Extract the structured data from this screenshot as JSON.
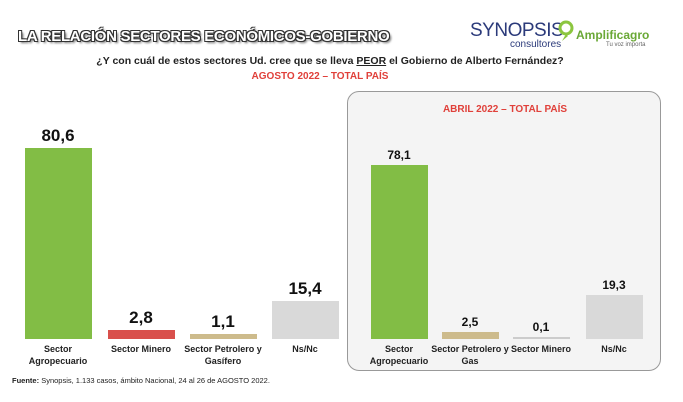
{
  "header": {
    "title": "LA RELACIÓN SECTORES ECONÓMICOS-GOBIERNO",
    "brand1": "SYNOPSIS",
    "brand1_sub": "consultores",
    "brand2": "Amplificagro",
    "brand2_sub": "Tu voz importa",
    "question": [
      "¿Y con cuál de estos sectores Ud. cree que se lleva ",
      "PEOR",
      " el Gobierno de Alberto Fernández?"
    ]
  },
  "chart_data": [
    {
      "type": "bar",
      "subtitle": "AGOSTO 2022 – TOTAL PAÍS",
      "categories": [
        "Sector Agropecuario",
        "Sector Minero",
        "Sector Petrolero y Gasífero",
        "Ns/Nc"
      ],
      "values": [
        80.6,
        2.8,
        1.1,
        15.4
      ],
      "value_labels": [
        "80,6",
        "2,8",
        "1,1",
        "15,4"
      ],
      "colors": [
        "#82bd45",
        "#d9504c",
        "#cdbb8c",
        "#d9d9d9"
      ]
    },
    {
      "type": "bar",
      "subtitle": "ABRIL 2022 – TOTAL PAÍS",
      "categories": [
        "Sector Agropecuario",
        "Sector Petrolero y Gas",
        "Sector Minero",
        "Ns/Nc"
      ],
      "values": [
        78.1,
        2.5,
        0.1,
        19.3
      ],
      "value_labels": [
        "78,1",
        "2,5",
        "0,1",
        "19,3"
      ],
      "colors": [
        "#82bd45",
        "#cdbb8c",
        "#cccccc",
        "#d9d9d9"
      ]
    }
  ],
  "footer": {
    "label": "Fuente:",
    "text": "Synopsis, 1.133 casos, ámbito Nacional, 24 al 26 de AGOSTO 2022."
  }
}
